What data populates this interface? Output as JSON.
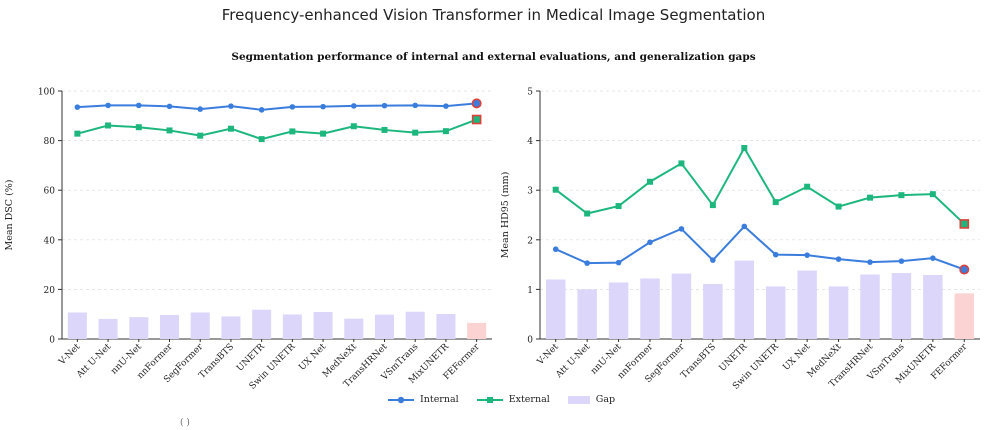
{
  "title": "Frequency-enhanced Vision Transformer in Medical Image Segmentation",
  "subtitle": "Segmentation performance of internal and external evaluations, and generalization gaps",
  "colors": {
    "internal": "#3b7ddd",
    "external": "#1db77e",
    "gap": "#ddd6fb",
    "gap_highlight": "#fbd3d3",
    "highlight_edge": "#e0403a"
  },
  "legend": [
    "Internal",
    "External",
    "Gap"
  ],
  "fragment": "(                              )",
  "chart_data": [
    {
      "type": "line",
      "ylabel": "Mean DSC (%)",
      "ylim": [
        0,
        100
      ],
      "yticks": [
        0,
        20,
        40,
        60,
        80,
        100
      ],
      "grid": true,
      "categories": [
        "V-Net",
        "Att U-Net",
        "nnU-Net",
        "nnFormer",
        "SegFormer",
        "TransBTS",
        "UNETR",
        "Swin UNETR",
        "UX Net",
        "MedNeXt",
        "TransHRNet",
        "VSmTrans",
        "MixUNETR",
        "FEFormer"
      ],
      "series": [
        {
          "name": "Internal",
          "values": [
            93.5,
            94.2,
            94.2,
            93.8,
            92.7,
            93.9,
            92.4,
            93.6,
            93.7,
            94.0,
            94.1,
            94.2,
            93.9,
            95.0
          ]
        },
        {
          "name": "External",
          "values": [
            82.8,
            86.1,
            85.4,
            84.1,
            82.0,
            84.8,
            80.6,
            83.7,
            82.8,
            85.8,
            84.3,
            83.2,
            83.8,
            88.5
          ]
        },
        {
          "name": "Gap",
          "values": [
            10.7,
            8.1,
            8.8,
            9.7,
            10.7,
            9.1,
            11.8,
            9.9,
            10.9,
            8.2,
            9.8,
            11.0,
            10.1,
            6.5
          ]
        }
      ]
    },
    {
      "type": "line",
      "ylabel": "Mean HD95 (mm)",
      "ylim": [
        0,
        5
      ],
      "yticks": [
        0,
        1,
        2,
        3,
        4,
        5
      ],
      "grid": true,
      "categories": [
        "V-Net",
        "Att U-Net",
        "nnU-Net",
        "nnFormer",
        "SegFormer",
        "TransBTS",
        "UNETR",
        "Swin UNETR",
        "UX Net",
        "MedNeXt",
        "TransHRNet",
        "VSmTrans",
        "MixUNETR",
        "FEFormer"
      ],
      "series": [
        {
          "name": "Internal",
          "values": [
            1.81,
            1.53,
            1.54,
            1.95,
            2.22,
            1.59,
            2.27,
            1.7,
            1.69,
            1.61,
            1.55,
            1.57,
            1.63,
            1.4
          ]
        },
        {
          "name": "External",
          "values": [
            3.01,
            2.53,
            2.68,
            3.17,
            3.54,
            2.7,
            3.85,
            2.76,
            3.07,
            2.67,
            2.85,
            2.9,
            2.92,
            2.32
          ]
        },
        {
          "name": "Gap",
          "values": [
            1.2,
            1.0,
            1.14,
            1.22,
            1.32,
            1.11,
            1.58,
            1.06,
            1.38,
            1.06,
            1.3,
            1.33,
            1.29,
            0.92
          ]
        }
      ]
    }
  ]
}
